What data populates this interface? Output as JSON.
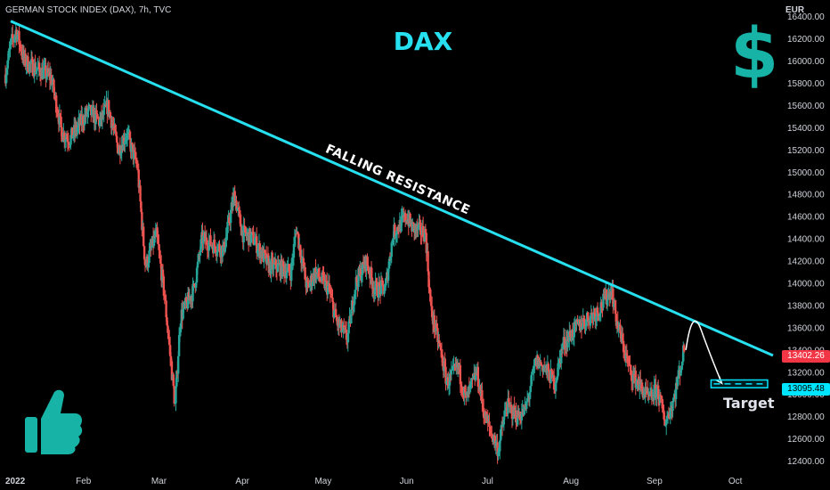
{
  "header": {
    "symbol_title": "GERMAN STOCK INDEX (DAX), 7h, TVC"
  },
  "overlay": {
    "title": "DAX",
    "trendline_label": "FALLING RESISTANCE",
    "target_label": "Target",
    "icons": [
      "dollar-icon",
      "thumbs-up-icon"
    ]
  },
  "price_scale": {
    "currency": "EUR",
    "last_price": "13402.26",
    "target_price": "13095.48"
  },
  "colors": {
    "background": "#000000",
    "up_candle": "#26a69a",
    "down_candle": "#ef5350",
    "trendline": "#26e0f0",
    "last_price_tag": "#f23645",
    "target_tag": "#00e5ff",
    "dollar_icon": "#16b3a6"
  },
  "chart_data": {
    "type": "candlestick",
    "y_ticks": [
      12400,
      12600,
      12800,
      13000,
      13200,
      13400,
      13600,
      13800,
      14000,
      14200,
      14400,
      14600,
      14800,
      15000,
      15200,
      15400,
      15600,
      15800,
      16000,
      16200,
      16400
    ],
    "ylim": [
      12300,
      16550
    ],
    "x_ticks": [
      {
        "label": "2022",
        "date": "2022-01-01"
      },
      {
        "label": "Feb",
        "date": "2022-02-01"
      },
      {
        "label": "Mar",
        "date": "2022-03-01"
      },
      {
        "label": "Apr",
        "date": "2022-04-01"
      },
      {
        "label": "May",
        "date": "2022-05-01"
      },
      {
        "label": "Jun",
        "date": "2022-06-01"
      },
      {
        "label": "Jul",
        "date": "2022-07-01"
      },
      {
        "label": "Aug",
        "date": "2022-08-01"
      },
      {
        "label": "Sep",
        "date": "2022-09-01"
      },
      {
        "label": "Oct",
        "date": "2022-10-01"
      }
    ],
    "xlim": [
      "2022-01-01",
      "2022-10-15"
    ],
    "close_path": [
      [
        "2022-01-03",
        15880
      ],
      [
        "2022-01-05",
        16150
      ],
      [
        "2022-01-07",
        16280
      ],
      [
        "2022-01-10",
        16000
      ],
      [
        "2022-01-13",
        15950
      ],
      [
        "2022-01-17",
        15900
      ],
      [
        "2022-01-20",
        15850
      ],
      [
        "2022-01-24",
        15350
      ],
      [
        "2022-01-27",
        15300
      ],
      [
        "2022-01-31",
        15450
      ],
      [
        "2022-02-03",
        15550
      ],
      [
        "2022-02-07",
        15450
      ],
      [
        "2022-02-10",
        15600
      ],
      [
        "2022-02-14",
        15200
      ],
      [
        "2022-02-17",
        15350
      ],
      [
        "2022-02-21",
        15050
      ],
      [
        "2022-02-24",
        14150
      ],
      [
        "2022-02-28",
        14450
      ],
      [
        "2022-03-03",
        13900
      ],
      [
        "2022-03-07",
        12900
      ],
      [
        "2022-03-09",
        13700
      ],
      [
        "2022-03-14",
        13950
      ],
      [
        "2022-03-17",
        14400
      ],
      [
        "2022-03-21",
        14350
      ],
      [
        "2022-03-25",
        14300
      ],
      [
        "2022-03-29",
        14800
      ],
      [
        "2022-04-01",
        14450
      ],
      [
        "2022-04-05",
        14400
      ],
      [
        "2022-04-11",
        14150
      ],
      [
        "2022-04-14",
        14150
      ],
      [
        "2022-04-19",
        14100
      ],
      [
        "2022-04-21",
        14500
      ],
      [
        "2022-04-25",
        13950
      ],
      [
        "2022-04-28",
        14100
      ],
      [
        "2022-05-03",
        13950
      ],
      [
        "2022-05-06",
        13650
      ],
      [
        "2022-05-10",
        13500
      ],
      [
        "2022-05-13",
        14000
      ],
      [
        "2022-05-17",
        14200
      ],
      [
        "2022-05-20",
        13950
      ],
      [
        "2022-05-24",
        13950
      ],
      [
        "2022-05-27",
        14450
      ],
      [
        "2022-06-01",
        14600
      ],
      [
        "2022-06-03",
        14500
      ],
      [
        "2022-06-08",
        14450
      ],
      [
        "2022-06-10",
        13750
      ],
      [
        "2022-06-13",
        13450
      ],
      [
        "2022-06-16",
        13100
      ],
      [
        "2022-06-20",
        13250
      ],
      [
        "2022-06-23",
        12950
      ],
      [
        "2022-06-27",
        13200
      ],
      [
        "2022-06-30",
        12800
      ],
      [
        "2022-07-05",
        12500
      ],
      [
        "2022-07-08",
        12900
      ],
      [
        "2022-07-12",
        12800
      ],
      [
        "2022-07-15",
        12850
      ],
      [
        "2022-07-19",
        13300
      ],
      [
        "2022-07-22",
        13250
      ],
      [
        "2022-07-26",
        13100
      ],
      [
        "2022-07-29",
        13450
      ],
      [
        "2022-08-03",
        13600
      ],
      [
        "2022-08-08",
        13700
      ],
      [
        "2022-08-11",
        13750
      ],
      [
        "2022-08-16",
        13950
      ],
      [
        "2022-08-18",
        13650
      ],
      [
        "2022-08-23",
        13200
      ],
      [
        "2022-08-26",
        13100
      ],
      [
        "2022-08-30",
        12950
      ],
      [
        "2022-09-02",
        13050
      ],
      [
        "2022-09-05",
        12750
      ],
      [
        "2022-09-08",
        12950
      ],
      [
        "2022-09-12",
        13400
      ]
    ],
    "trendline": {
      "from": [
        "2022-01-01",
        16360
      ],
      "to": [
        "2022-10-15",
        13350
      ]
    },
    "projection": {
      "from": [
        "2022-09-12",
        13400
      ],
      "peak": [
        "2022-09-17",
        13580
      ],
      "to": [
        "2022-09-26",
        13100
      ]
    },
    "target_zone": {
      "y_top": 13130,
      "y_bottom": 13060,
      "x_from": "2022-09-22",
      "x_to": "2022-10-13"
    }
  }
}
